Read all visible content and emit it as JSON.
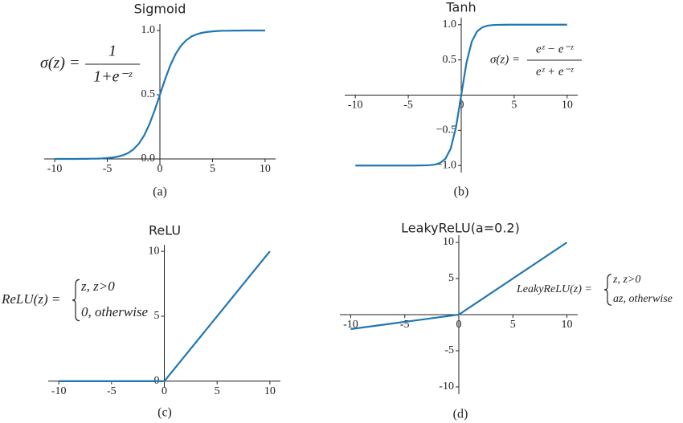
{
  "chart_data": [
    {
      "type": "line",
      "title": "Sigmoid",
      "caption": "(a)",
      "formula": {
        "lhs": "σ(z) =",
        "numerator": "1",
        "denominator": "1+e⁻ᶻ"
      },
      "x": [
        -10,
        -9.5,
        -9,
        -8.5,
        -8,
        -7.5,
        -7,
        -6.5,
        -6,
        -5.5,
        -5,
        -4.5,
        -4,
        -3.5,
        -3,
        -2.5,
        -2,
        -1.5,
        -1,
        -0.5,
        0,
        0.5,
        1,
        1.5,
        2,
        2.5,
        3,
        3.5,
        4,
        4.5,
        5,
        5.5,
        6,
        6.5,
        7,
        7.5,
        8,
        8.5,
        9,
        9.5,
        10
      ],
      "values": [
        0,
        0,
        0,
        0,
        0,
        0.001,
        0.001,
        0.002,
        0.002,
        0.004,
        0.007,
        0.011,
        0.018,
        0.029,
        0.047,
        0.076,
        0.119,
        0.182,
        0.269,
        0.378,
        0.5,
        0.622,
        0.731,
        0.818,
        0.881,
        0.924,
        0.953,
        0.971,
        0.982,
        0.989,
        0.993,
        0.996,
        0.998,
        0.998,
        0.999,
        0.999,
        1,
        1,
        1,
        1,
        1
      ],
      "color": "#1f77b4",
      "xlim": [
        -11,
        11
      ],
      "ylim": [
        -0.05,
        1.05
      ],
      "xticks": [
        -10,
        -5,
        0,
        5,
        10
      ],
      "yticks": [
        {
          "value": 0,
          "label": "0.0"
        },
        0.5,
        {
          "value": 1,
          "label": "1.0"
        }
      ]
    },
    {
      "type": "line",
      "title": "Tanh",
      "caption": "(b)",
      "formula": {
        "lhs": "σ(z) =",
        "numerator": "eᶻ − e⁻ᶻ",
        "denominator": "eᶻ + e⁻ᶻ"
      },
      "x": [
        -10,
        -9.5,
        -9,
        -8.5,
        -8,
        -7.5,
        -7,
        -6.5,
        -6,
        -5.5,
        -5,
        -4.5,
        -4,
        -3.5,
        -3,
        -2.5,
        -2,
        -1.5,
        -1,
        -0.5,
        0,
        0.5,
        1,
        1.5,
        2,
        2.5,
        3,
        3.5,
        4,
        4.5,
        5,
        5.5,
        6,
        6.5,
        7,
        7.5,
        8,
        8.5,
        9,
        9.5,
        10
      ],
      "values": [
        -1,
        -1,
        -1,
        -1,
        -1,
        -1,
        -1,
        -1,
        -1,
        -1,
        -1,
        -1,
        -0.999,
        -0.998,
        -0.995,
        -0.987,
        -0.964,
        -0.905,
        -0.762,
        -0.462,
        0,
        0.462,
        0.762,
        0.905,
        0.964,
        0.987,
        0.995,
        0.998,
        0.999,
        1,
        1,
        1,
        1,
        1,
        1,
        1,
        1,
        1,
        1,
        1,
        1
      ],
      "color": "#1f77b4",
      "xlim": [
        -11,
        11
      ],
      "ylim": [
        -1.1,
        1.1
      ],
      "xticks": [
        -10,
        -5,
        0,
        5,
        10
      ],
      "yticks": [
        {
          "value": -1,
          "label": "−1.0"
        },
        {
          "value": -0.5,
          "label": "−0.5"
        },
        0.5,
        {
          "value": 1,
          "label": "1.0"
        }
      ]
    },
    {
      "type": "line",
      "title": "ReLU",
      "caption": "(c)",
      "formula": {
        "lhs": "ReLU(z) =",
        "cases": [
          "z, z>0",
          "0, otherwise"
        ]
      },
      "x": [
        -10,
        0,
        10
      ],
      "values": [
        0,
        0,
        10
      ],
      "color": "#1f77b4",
      "xlim": [
        -11,
        11
      ],
      "ylim": [
        -0.5,
        10.5
      ],
      "xticks": [
        -10,
        -5,
        0,
        5,
        10
      ],
      "yticks": [
        0,
        5,
        10
      ]
    },
    {
      "type": "line",
      "title": "LeakyReLU(a=0.2)",
      "caption": "(d)",
      "formula": {
        "lhs": "LeakyReLU(z) =",
        "cases": [
          "z, z>0",
          "az, otherwise"
        ]
      },
      "x": [
        -10,
        0,
        10
      ],
      "values": [
        -2,
        0,
        10
      ],
      "color": "#1f77b4",
      "xlim": [
        -11,
        11
      ],
      "ylim": [
        -11,
        11
      ],
      "xticks": [
        -10,
        -5,
        0,
        5,
        10
      ],
      "yticks": [
        -10,
        -5,
        5,
        10
      ]
    }
  ]
}
